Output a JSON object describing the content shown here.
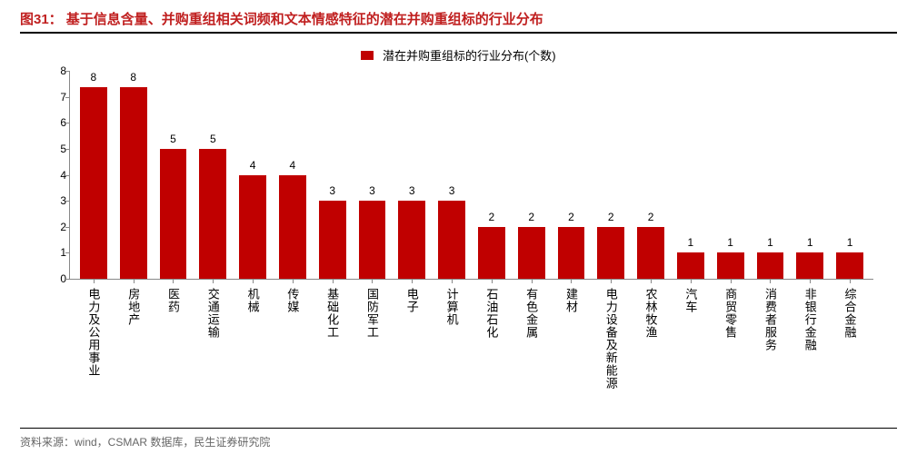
{
  "figure": {
    "number": "图31：",
    "title": "基于信息含量、并购重组相关词频和文本情感特征的潜在并购重组标的行业分布"
  },
  "legend": {
    "swatch_color": "#c00000",
    "text": "潜在并购重组标的行业分布(个数)"
  },
  "chart": {
    "type": "bar",
    "ymax": 8,
    "ymin": 0,
    "yticks": [
      0,
      1,
      2,
      3,
      4,
      5,
      6,
      7,
      8
    ],
    "bar_color": "#c00000",
    "axis_color": "#888888",
    "label_fontsize": 12,
    "categories": [
      "电力及公用事业",
      "房地产",
      "医药",
      "交通运输",
      "机械",
      "传媒",
      "基础化工",
      "国防军工",
      "电子",
      "计算机",
      "石油石化",
      "有色金属",
      "建材",
      "电力设备及新能源",
      "农林牧渔",
      "汽车",
      "商贸零售",
      "消费者服务",
      "非银行金融",
      "综合金融"
    ],
    "values": [
      8,
      8,
      5,
      5,
      4,
      4,
      3,
      3,
      3,
      3,
      2,
      2,
      2,
      2,
      2,
      1,
      1,
      1,
      1,
      1
    ]
  },
  "source": "资料来源：wind，CSMAR 数据库，民生证券研究院"
}
